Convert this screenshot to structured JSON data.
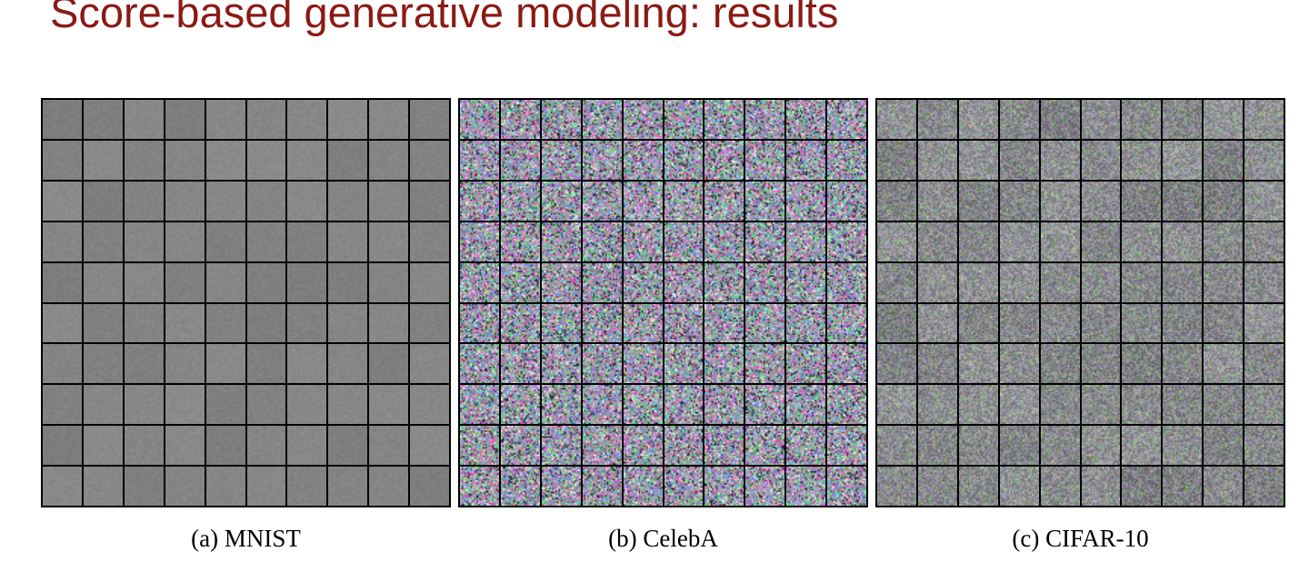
{
  "slide": {
    "title": "Score-based generative modeling: results"
  },
  "panels": [
    {
      "id": "mnist",
      "caption": "(a) MNIST",
      "rows": 10,
      "cols": 10,
      "style": "gray",
      "base_color": "#888888"
    },
    {
      "id": "celeba",
      "caption": "(b) CelebA",
      "rows": 10,
      "cols": 10,
      "style": "color-noise",
      "base_color": "#8c7a80"
    },
    {
      "id": "cifar10",
      "caption": "(c) CIFAR-10",
      "rows": 10,
      "cols": 10,
      "style": "muted-noise",
      "base_color": "#8a8a8a"
    }
  ]
}
